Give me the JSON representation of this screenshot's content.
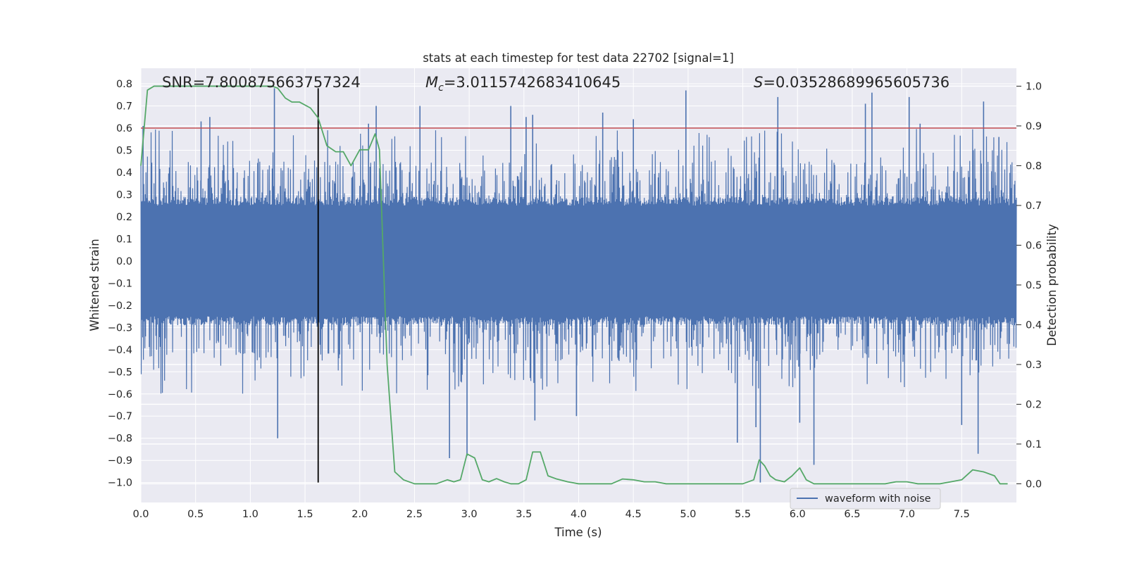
{
  "chart_data": {
    "type": "line",
    "title": "stats at each timestep for test data 22702 [signal=1]",
    "xlabel": "Time (s)",
    "ylabel": "Whitened strain",
    "y2label": "Detection probability",
    "xlim": [
      0,
      8
    ],
    "ylim": [
      -1.09,
      0.87
    ],
    "y2lim": [
      -0.047,
      1.045
    ],
    "xticks": [
      "0.0",
      "0.5",
      "1.0",
      "1.5",
      "2.0",
      "2.5",
      "3.0",
      "3.5",
      "4.0",
      "4.5",
      "5.0",
      "5.5",
      "6.0",
      "6.5",
      "7.0",
      "7.5"
    ],
    "yticks": [
      "0.8",
      "0.7",
      "0.6",
      "0.5",
      "0.4",
      "0.3",
      "0.2",
      "0.1",
      "0.0",
      "-0.1",
      "-0.2",
      "-0.3",
      "-0.4",
      "-0.5",
      "-0.6",
      "-0.7",
      "-0.8",
      "-0.9",
      "-1.0"
    ],
    "y2ticks": [
      "1.0",
      "0.9",
      "0.8",
      "0.7",
      "0.6",
      "0.5",
      "0.4",
      "0.3",
      "0.2",
      "0.1",
      "0.0"
    ],
    "grid": true,
    "legend_position": "lower-right",
    "annotations": {
      "snr": "SNR=7.800875663757324",
      "mc_symbol": "M",
      "mc_subscript": "c",
      "mc_value": "=3.0115742683410645",
      "s_symbol": "S",
      "s_value": "=0.03528689965605736"
    },
    "threshold_line": {
      "y": 0.6,
      "color": "#c44e52"
    },
    "vertical_marker": {
      "x": 1.62,
      "y_range": [
        -1.0,
        0.78
      ],
      "color": "#000000"
    },
    "series": [
      {
        "name": "waveform with noise",
        "axis": "left",
        "color": "#4c72b0",
        "envelope": {
          "core_amplitude": 0.25,
          "typical_peak": 0.45,
          "max_peak": 0.78,
          "min_trough": -1.0
        },
        "spikes": [
          {
            "x": 0.02,
            "y": 0.61
          },
          {
            "x": 0.55,
            "y": 0.63
          },
          {
            "x": 0.63,
            "y": 0.65
          },
          {
            "x": 1.22,
            "y": 0.78
          },
          {
            "x": 1.25,
            "y": -0.8
          },
          {
            "x": 2.08,
            "y": 0.62
          },
          {
            "x": 2.15,
            "y": 0.7
          },
          {
            "x": 2.55,
            "y": 0.7
          },
          {
            "x": 2.82,
            "y": -0.89
          },
          {
            "x": 2.98,
            "y": -0.88
          },
          {
            "x": 3.38,
            "y": 0.7
          },
          {
            "x": 3.52,
            "y": 0.65
          },
          {
            "x": 3.58,
            "y": 0.66
          },
          {
            "x": 3.6,
            "y": -0.72
          },
          {
            "x": 3.98,
            "y": -0.7
          },
          {
            "x": 4.22,
            "y": 0.67
          },
          {
            "x": 4.5,
            "y": 0.64
          },
          {
            "x": 4.98,
            "y": 0.77
          },
          {
            "x": 5.45,
            "y": -0.82
          },
          {
            "x": 5.62,
            "y": -0.75
          },
          {
            "x": 5.66,
            "y": -1.0
          },
          {
            "x": 5.82,
            "y": 0.74
          },
          {
            "x": 6.02,
            "y": -0.73
          },
          {
            "x": 6.15,
            "y": -0.92
          },
          {
            "x": 6.62,
            "y": 0.71
          },
          {
            "x": 6.68,
            "y": 0.76
          },
          {
            "x": 7.02,
            "y": 0.74
          },
          {
            "x": 7.12,
            "y": 0.62
          },
          {
            "x": 7.5,
            "y": -0.74
          },
          {
            "x": 7.65,
            "y": -0.87
          },
          {
            "x": 7.7,
            "y": 0.72
          },
          {
            "x": 7.84,
            "y": 0.56
          }
        ]
      },
      {
        "name": "",
        "axis": "right",
        "color": "#55a868",
        "x": [
          0.0,
          0.06,
          0.12,
          0.2,
          0.4,
          0.6,
          0.8,
          1.0,
          1.2,
          1.25,
          1.32,
          1.38,
          1.45,
          1.55,
          1.62,
          1.7,
          1.78,
          1.85,
          1.92,
          2.0,
          2.08,
          2.14,
          2.18,
          2.25,
          2.32,
          2.4,
          2.5,
          2.6,
          2.7,
          2.8,
          2.86,
          2.92,
          2.98,
          3.05,
          3.12,
          3.18,
          3.25,
          3.32,
          3.38,
          3.45,
          3.52,
          3.58,
          3.65,
          3.72,
          3.8,
          3.9,
          4.0,
          4.1,
          4.2,
          4.3,
          4.4,
          4.5,
          4.6,
          4.7,
          4.8,
          4.9,
          5.0,
          5.1,
          5.2,
          5.3,
          5.4,
          5.5,
          5.6,
          5.65,
          5.7,
          5.75,
          5.8,
          5.88,
          5.95,
          6.02,
          6.08,
          6.15,
          6.22,
          6.3,
          6.4,
          6.5,
          6.6,
          6.7,
          6.8,
          6.9,
          7.0,
          7.1,
          7.2,
          7.3,
          7.4,
          7.5,
          7.6,
          7.7,
          7.8,
          7.85,
          7.92
        ],
        "values": [
          0.8,
          0.99,
          1.0,
          1.0,
          1.0,
          1.0,
          1.0,
          1.0,
          1.0,
          0.995,
          0.97,
          0.96,
          0.96,
          0.945,
          0.92,
          0.85,
          0.835,
          0.835,
          0.8,
          0.84,
          0.84,
          0.88,
          0.84,
          0.3,
          0.03,
          0.01,
          0.0,
          0.0,
          0.0,
          0.01,
          0.005,
          0.01,
          0.075,
          0.065,
          0.01,
          0.005,
          0.013,
          0.005,
          0.0,
          0.0,
          0.01,
          0.08,
          0.08,
          0.02,
          0.012,
          0.005,
          0.0,
          0.0,
          0.0,
          0.0,
          0.012,
          0.01,
          0.005,
          0.005,
          0.0,
          0.0,
          0.0,
          0.0,
          0.0,
          0.0,
          0.0,
          0.0,
          0.01,
          0.06,
          0.045,
          0.02,
          0.01,
          0.005,
          0.02,
          0.04,
          0.01,
          0.0,
          0.0,
          0.0,
          0.0,
          0.0,
          0.0,
          0.0,
          0.0,
          0.005,
          0.005,
          0.0,
          0.0,
          0.0,
          0.005,
          0.01,
          0.035,
          0.03,
          0.02,
          0.0,
          0.0
        ]
      }
    ]
  }
}
